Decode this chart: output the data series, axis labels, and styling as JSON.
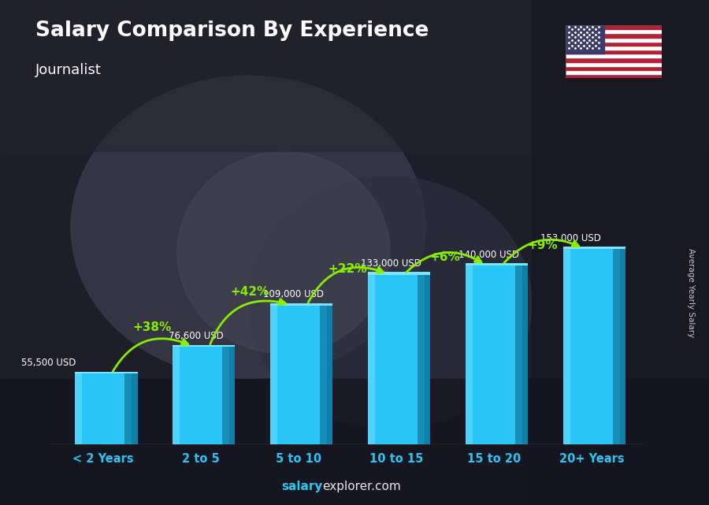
{
  "title": "Salary Comparison By Experience",
  "subtitle": "Journalist",
  "categories": [
    "< 2 Years",
    "2 to 5",
    "5 to 10",
    "10 to 15",
    "15 to 20",
    "20+ Years"
  ],
  "values": [
    55500,
    76600,
    109000,
    133000,
    140000,
    153000
  ],
  "value_labels": [
    "55,500 USD",
    "76,600 USD",
    "109,000 USD",
    "133,000 USD",
    "140,000 USD",
    "153,000 USD"
  ],
  "pct_changes": [
    "+38%",
    "+42%",
    "+22%",
    "+6%",
    "+9%"
  ],
  "bar_front_color": "#29c5f6",
  "bar_side_color": "#0d7fa8",
  "bar_top_color": "#7de4ff",
  "bar_highlight_color": "#60d8f8",
  "bg_dark": "#2a2a3a",
  "text_color_white": "#ffffff",
  "text_color_cyan": "#29c5f6",
  "pct_color": "#88ee00",
  "watermark_bold": "salary",
  "watermark_normal": "explorer.com",
  "ylabel": "Average Yearly Salary",
  "bar_width": 0.58,
  "ylim_factor": 1.5,
  "fig_width": 9.0,
  "fig_height": 6.41
}
